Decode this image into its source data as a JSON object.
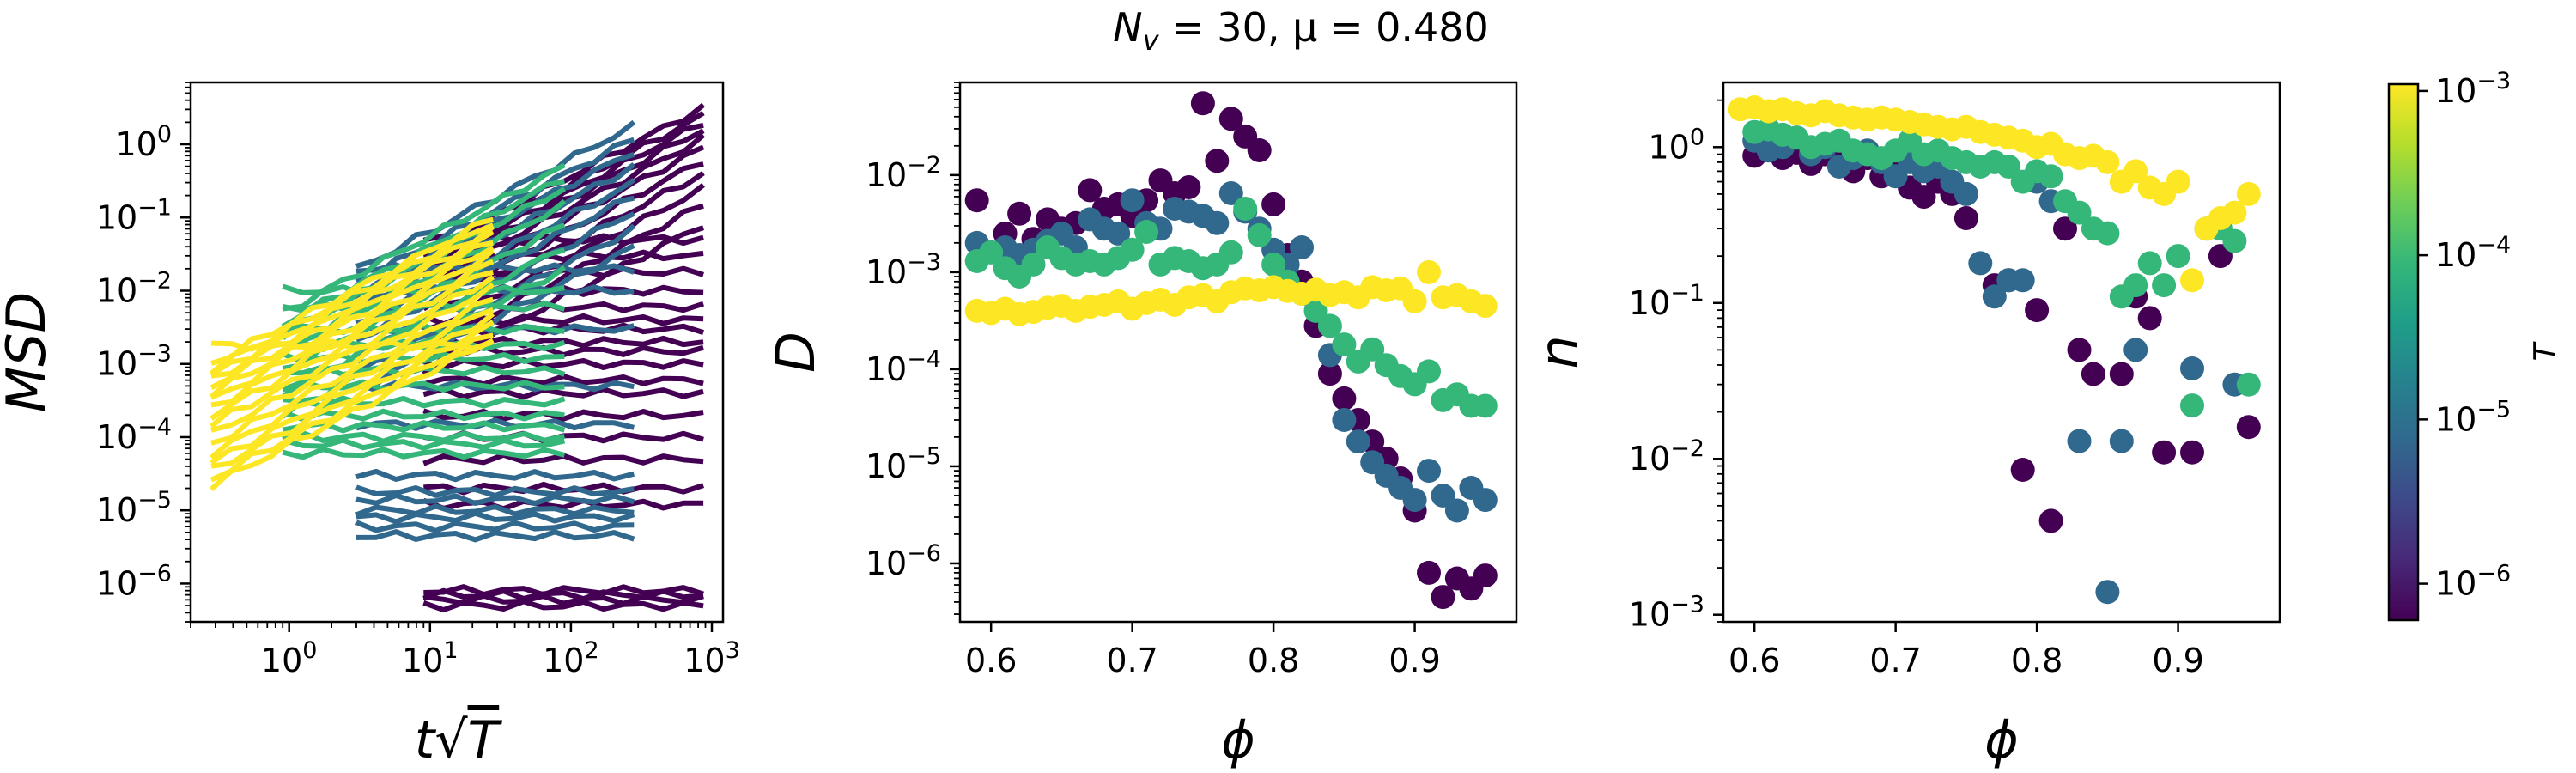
{
  "suptitle": "N_v = 30, μ = 0.480",
  "colorbar": {
    "label": "T",
    "ticks": [
      "10^-3",
      "10^-4",
      "10^-5",
      "10^-6"
    ],
    "tick_values": [
      0.001,
      0.0001,
      1e-05,
      1e-06
    ],
    "range": [
      6e-07,
      0.0011
    ],
    "colormap": [
      "#440154",
      "#482878",
      "#3e4989",
      "#31688e",
      "#26828e",
      "#1f9e89",
      "#35b779",
      "#6ece58",
      "#b5de2b",
      "#fde725"
    ]
  },
  "chart_data": [
    {
      "type": "line",
      "xlabel": "t√T",
      "ylabel": "MSD",
      "xscale": "log",
      "yscale": "log",
      "xlim": [
        0.2,
        1200
      ],
      "ylim": [
        3e-07,
        7
      ],
      "x_ticks": [
        "10^0",
        "10^1",
        "10^2",
        "10^3"
      ],
      "y_ticks": [
        "10^-6",
        "10^-5",
        "10^-4",
        "10^-3",
        "10^-2",
        "10^-1",
        "10^0"
      ],
      "groups": [
        {
          "temperature": 1e-06,
          "color": "#440154",
          "x_range": [
            9,
            870
          ],
          "finals": [
            3.2,
            2.5,
            2.0,
            1.6,
            1.2,
            0.9,
            0.6,
            0.4,
            0.25,
            0.15,
            0.08,
            0.05,
            0.03,
            0.018,
            0.01,
            0.006,
            0.004,
            0.003,
            0.002,
            0.0015,
            0.001,
            0.0006,
            0.0004,
            0.0002,
            0.0001,
            5e-05,
            2e-05,
            1.2e-05,
            8e-07,
            7e-07,
            6e-07,
            5e-07
          ]
        },
        {
          "temperature": 1e-05,
          "color": "#31688e",
          "x_range": [
            3,
            280
          ],
          "finals": [
            1.8,
            1.2,
            0.8,
            0.5,
            0.3,
            0.2,
            0.12,
            0.07,
            0.04,
            0.02,
            0.01,
            0.003,
            0.0005,
            0.00015,
            3e-05,
            1.8e-05,
            1.4e-05,
            1e-05,
            8e-06,
            6e-06,
            4.5e-06
          ]
        },
        {
          "temperature": 0.0001,
          "color": "#35b779",
          "x_range": [
            0.9,
            90
          ],
          "finals": [
            0.5,
            0.35,
            0.25,
            0.15,
            0.08,
            0.04,
            0.02,
            0.01,
            0.006,
            0.003,
            0.0018,
            0.0012,
            0.0008,
            0.0005,
            0.0003,
            0.0002,
            0.00014,
            0.0001,
            8e-05,
            6e-05
          ]
        },
        {
          "temperature": 0.001,
          "color": "#fde725",
          "x_range": [
            0.28,
            28
          ],
          "finals": [
            0.1,
            0.085,
            0.07,
            0.06,
            0.05,
            0.04,
            0.032,
            0.025,
            0.02,
            0.015,
            0.011,
            0.008,
            0.006,
            0.0045,
            0.0035,
            0.0027,
            0.0022,
            0.0018
          ]
        }
      ]
    },
    {
      "type": "scatter",
      "xlabel": "ϕ",
      "ylabel": "D",
      "yscale": "log",
      "xlim": [
        0.578,
        0.972
      ],
      "ylim": [
        2.5e-07,
        0.09
      ],
      "x_ticks": [
        "0.6",
        "0.7",
        "0.8",
        "0.9"
      ],
      "y_ticks": [
        "10^-6",
        "10^-5",
        "10^-4",
        "10^-3",
        "10^-2"
      ],
      "series": [
        {
          "temperature": 1e-06,
          "color": "#440154",
          "x": [
            0.59,
            0.61,
            0.62,
            0.63,
            0.64,
            0.65,
            0.66,
            0.67,
            0.68,
            0.69,
            0.7,
            0.71,
            0.72,
            0.73,
            0.74,
            0.75,
            0.76,
            0.77,
            0.78,
            0.79,
            0.8,
            0.81,
            0.82,
            0.83,
            0.84,
            0.85,
            0.86,
            0.87,
            0.88,
            0.89,
            0.9,
            0.91,
            0.92,
            0.93,
            0.94,
            0.95
          ],
          "y": [
            0.0055,
            0.0025,
            0.004,
            0.0022,
            0.0035,
            0.0028,
            0.0032,
            0.007,
            0.0045,
            0.005,
            0.0038,
            0.0055,
            0.0088,
            0.0065,
            0.0075,
            0.055,
            0.014,
            0.038,
            0.025,
            0.018,
            0.005,
            0.0015,
            0.0008,
            0.00028,
            9e-05,
            5e-05,
            3e-05,
            1.8e-05,
            1.2e-05,
            7.5e-06,
            3.5e-06,
            8e-07,
            4.5e-07,
            7e-07,
            5.5e-07,
            7.5e-07
          ]
        },
        {
          "temperature": 1e-05,
          "color": "#31688e",
          "x": [
            0.59,
            0.6,
            0.61,
            0.62,
            0.63,
            0.64,
            0.65,
            0.66,
            0.67,
            0.68,
            0.69,
            0.7,
            0.71,
            0.72,
            0.73,
            0.74,
            0.75,
            0.76,
            0.77,
            0.78,
            0.79,
            0.8,
            0.81,
            0.82,
            0.83,
            0.84,
            0.85,
            0.86,
            0.87,
            0.88,
            0.89,
            0.9,
            0.91,
            0.92,
            0.93,
            0.94,
            0.95
          ],
          "y": [
            0.002,
            0.0016,
            0.0018,
            0.0015,
            0.0017,
            0.0021,
            0.0025,
            0.0018,
            0.0035,
            0.0028,
            0.0025,
            0.0055,
            0.0032,
            0.0028,
            0.0045,
            0.0042,
            0.0038,
            0.0032,
            0.0065,
            0.0042,
            0.0028,
            0.0017,
            0.0012,
            0.0018,
            0.0005,
            0.00014,
            3e-05,
            1.8e-05,
            1.1e-05,
            8e-06,
            6e-06,
            4.5e-06,
            9e-06,
            5e-06,
            3.5e-06,
            6e-06,
            4.5e-06
          ]
        },
        {
          "temperature": 0.0001,
          "color": "#35b779",
          "x": [
            0.59,
            0.6,
            0.61,
            0.62,
            0.63,
            0.64,
            0.65,
            0.66,
            0.67,
            0.68,
            0.69,
            0.7,
            0.71,
            0.72,
            0.73,
            0.74,
            0.75,
            0.76,
            0.77,
            0.78,
            0.79,
            0.8,
            0.81,
            0.82,
            0.83,
            0.84,
            0.85,
            0.86,
            0.87,
            0.88,
            0.89,
            0.9,
            0.91,
            0.92,
            0.93,
            0.94,
            0.95
          ],
          "y": [
            0.0013,
            0.0016,
            0.0011,
            0.0009,
            0.0012,
            0.0018,
            0.0014,
            0.0012,
            0.0013,
            0.0012,
            0.0014,
            0.0017,
            0.0026,
            0.0012,
            0.0014,
            0.0013,
            0.0011,
            0.0012,
            0.0016,
            0.0045,
            0.0024,
            0.0012,
            0.0008,
            0.0006,
            0.0004,
            0.00028,
            0.00018,
            0.00012,
            0.00016,
            0.00011,
            8.5e-05,
            7e-05,
            9.5e-05,
            4.8e-05,
            5.5e-05,
            4.2e-05,
            4.2e-05
          ]
        },
        {
          "temperature": 0.001,
          "color": "#fde725",
          "x": [
            0.59,
            0.6,
            0.61,
            0.62,
            0.63,
            0.64,
            0.65,
            0.66,
            0.67,
            0.68,
            0.69,
            0.7,
            0.71,
            0.72,
            0.73,
            0.74,
            0.75,
            0.76,
            0.77,
            0.78,
            0.79,
            0.8,
            0.81,
            0.82,
            0.83,
            0.84,
            0.85,
            0.86,
            0.87,
            0.88,
            0.89,
            0.9,
            0.91,
            0.92,
            0.93,
            0.94,
            0.95
          ],
          "y": [
            0.0004,
            0.00038,
            0.00042,
            0.00037,
            0.00039,
            0.00043,
            0.00045,
            0.0004,
            0.00044,
            0.00046,
            0.0005,
            0.00042,
            0.00048,
            0.00052,
            0.00046,
            0.00055,
            0.00058,
            0.0005,
            0.00062,
            0.00068,
            0.00065,
            0.0007,
            0.00064,
            0.0006,
            0.00066,
            0.00058,
            0.00062,
            0.00055,
            0.0007,
            0.00065,
            0.00068,
            0.0005,
            0.001,
            0.00055,
            0.00058,
            0.0005,
            0.00045
          ]
        }
      ]
    },
    {
      "type": "scatter",
      "xlabel": "ϕ",
      "ylabel": "n",
      "yscale": "log",
      "xlim": [
        0.578,
        0.972
      ],
      "ylim": [
        0.0009,
        2.6
      ],
      "x_ticks": [
        "0.6",
        "0.7",
        "0.8",
        "0.9"
      ],
      "y_ticks": [
        "10^-3",
        "10^-2",
        "10^-1",
        "10^0"
      ],
      "series": [
        {
          "temperature": 1e-06,
          "color": "#440154",
          "x": [
            0.6,
            0.61,
            0.62,
            0.63,
            0.64,
            0.65,
            0.66,
            0.67,
            0.68,
            0.69,
            0.7,
            0.71,
            0.72,
            0.73,
            0.74,
            0.75,
            0.77,
            0.78,
            0.79,
            0.8,
            0.81,
            0.82,
            0.83,
            0.84,
            0.86,
            0.87,
            0.88,
            0.89,
            0.91,
            0.93,
            0.95
          ],
          "y": [
            0.88,
            1.0,
            0.85,
            0.92,
            0.78,
            0.9,
            0.8,
            0.7,
            0.85,
            0.65,
            0.75,
            0.55,
            0.48,
            0.6,
            0.5,
            0.35,
            0.13,
            0.14,
            0.0085,
            0.09,
            0.004,
            0.3,
            0.05,
            0.035,
            0.035,
            0.11,
            0.08,
            0.011,
            0.011,
            0.2,
            0.016
          ]
        },
        {
          "temperature": 1e-05,
          "color": "#31688e",
          "x": [
            0.6,
            0.61,
            0.62,
            0.63,
            0.64,
            0.65,
            0.66,
            0.67,
            0.68,
            0.69,
            0.7,
            0.71,
            0.72,
            0.73,
            0.74,
            0.75,
            0.76,
            0.77,
            0.78,
            0.79,
            0.8,
            0.81,
            0.83,
            0.85,
            0.86,
            0.87,
            0.91,
            0.94
          ],
          "y": [
            1.1,
            0.95,
            1.0,
            1.15,
            0.9,
            1.0,
            0.75,
            0.85,
            0.95,
            0.8,
            0.65,
            0.8,
            0.7,
            0.75,
            0.6,
            0.5,
            0.18,
            0.11,
            0.14,
            0.14,
            0.6,
            0.45,
            0.013,
            0.0014,
            0.013,
            0.05,
            0.038,
            0.03
          ]
        },
        {
          "temperature": 0.0001,
          "color": "#35b779",
          "x": [
            0.6,
            0.61,
            0.62,
            0.63,
            0.64,
            0.65,
            0.66,
            0.67,
            0.68,
            0.69,
            0.7,
            0.71,
            0.72,
            0.73,
            0.74,
            0.75,
            0.76,
            0.77,
            0.78,
            0.79,
            0.8,
            0.81,
            0.82,
            0.83,
            0.84,
            0.85,
            0.86,
            0.87,
            0.88,
            0.89,
            0.9,
            0.91,
            0.92,
            0.93,
            0.94,
            0.95
          ],
          "y": [
            1.25,
            1.3,
            1.2,
            1.15,
            1.0,
            1.05,
            1.1,
            0.95,
            0.9,
            0.85,
            0.95,
            1.1,
            0.9,
            0.95,
            0.85,
            0.8,
            0.75,
            0.8,
            0.75,
            0.6,
            0.7,
            0.65,
            0.45,
            0.38,
            0.3,
            0.28,
            0.11,
            0.13,
            0.18,
            0.13,
            0.2,
            0.022,
            0.3,
            0.3,
            0.25,
            0.03
          ]
        },
        {
          "temperature": 0.001,
          "color": "#fde725",
          "x": [
            0.59,
            0.6,
            0.61,
            0.62,
            0.63,
            0.64,
            0.65,
            0.66,
            0.67,
            0.68,
            0.69,
            0.7,
            0.71,
            0.72,
            0.73,
            0.74,
            0.75,
            0.76,
            0.77,
            0.78,
            0.79,
            0.8,
            0.81,
            0.82,
            0.83,
            0.84,
            0.85,
            0.86,
            0.87,
            0.88,
            0.89,
            0.9,
            0.91,
            0.92,
            0.93,
            0.94,
            0.95
          ],
          "y": [
            1.75,
            1.8,
            1.7,
            1.75,
            1.65,
            1.6,
            1.7,
            1.6,
            1.55,
            1.5,
            1.55,
            1.5,
            1.45,
            1.4,
            1.35,
            1.3,
            1.35,
            1.25,
            1.2,
            1.15,
            1.1,
            1.0,
            1.05,
            0.9,
            0.85,
            0.88,
            0.8,
            0.6,
            0.7,
            0.55,
            0.5,
            0.6,
            0.14,
            0.3,
            0.35,
            0.38,
            0.5
          ]
        }
      ]
    }
  ]
}
